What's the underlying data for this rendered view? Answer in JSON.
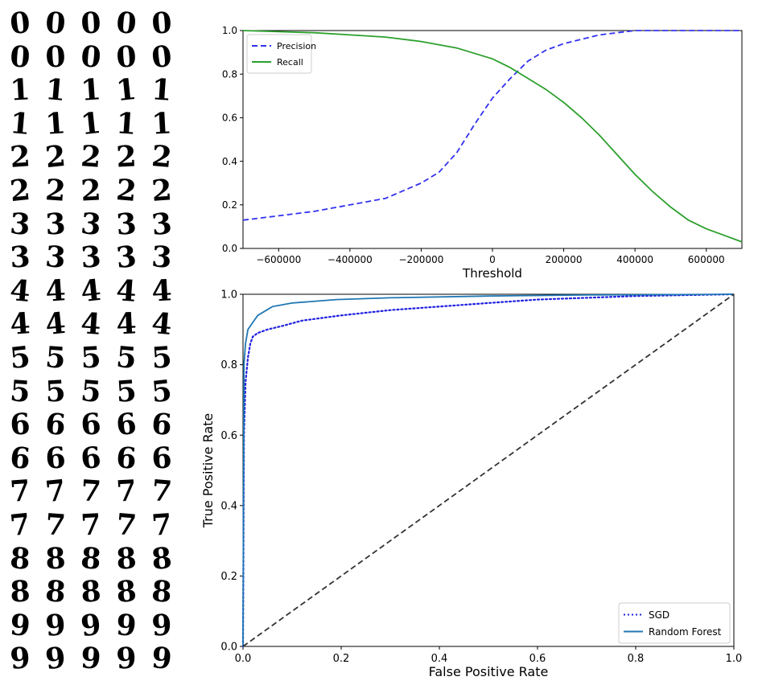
{
  "digits": {
    "rows": [
      [
        "0",
        "0",
        "0",
        "0",
        "0"
      ],
      [
        "0",
        "0",
        "0",
        "0",
        "0"
      ],
      [
        "1",
        "1",
        "1",
        "1",
        "1"
      ],
      [
        "1",
        "1",
        "1",
        "1",
        "1"
      ],
      [
        "2",
        "2",
        "2",
        "2",
        "2"
      ],
      [
        "2",
        "2",
        "2",
        "2",
        "2"
      ],
      [
        "3",
        "3",
        "3",
        "3",
        "3"
      ],
      [
        "3",
        "3",
        "3",
        "3",
        "3"
      ],
      [
        "4",
        "4",
        "4",
        "4",
        "4"
      ],
      [
        "4",
        "4",
        "4",
        "4",
        "4"
      ],
      [
        "5",
        "5",
        "5",
        "5",
        "5"
      ],
      [
        "5",
        "5",
        "5",
        "5",
        "5"
      ],
      [
        "6",
        "6",
        "6",
        "6",
        "6"
      ],
      [
        "6",
        "6",
        "6",
        "6",
        "6"
      ],
      [
        "7",
        "7",
        "7",
        "7",
        "7"
      ],
      [
        "7",
        "7",
        "7",
        "7",
        "7"
      ],
      [
        "8",
        "8",
        "8",
        "8",
        "8"
      ],
      [
        "8",
        "8",
        "8",
        "8",
        "8"
      ],
      [
        "9",
        "9",
        "9",
        "9",
        "9"
      ],
      [
        "9",
        "9",
        "9",
        "9",
        "9"
      ]
    ]
  },
  "chart_data": [
    {
      "type": "line",
      "title": "",
      "xlabel": "Threshold",
      "ylabel": "",
      "xlim": [
        -700000,
        700000
      ],
      "ylim": [
        0,
        1
      ],
      "xticks": [
        -600000,
        -400000,
        -200000,
        0,
        200000,
        400000,
        600000
      ],
      "xtick_labels": [
        "−600000",
        "−400000",
        "−200000",
        "0",
        "200000",
        "400000",
        "600000"
      ],
      "yticks": [
        0,
        0.2,
        0.4,
        0.6,
        0.8,
        1.0
      ],
      "ytick_labels": [
        "0.0",
        "0.2",
        "0.4",
        "0.6",
        "0.8",
        "1.0"
      ],
      "legend_position": "top-left",
      "series": [
        {
          "name": "Precision",
          "style": "dashed",
          "color": "#3232f0",
          "x": [
            -700000,
            -600000,
            -500000,
            -400000,
            -300000,
            -200000,
            -150000,
            -100000,
            -50000,
            0,
            50000,
            100000,
            150000,
            200000,
            250000,
            300000,
            350000,
            400000,
            500000,
            600000,
            700000
          ],
          "y": [
            0.13,
            0.15,
            0.17,
            0.2,
            0.23,
            0.3,
            0.35,
            0.44,
            0.57,
            0.69,
            0.78,
            0.86,
            0.91,
            0.94,
            0.96,
            0.98,
            0.99,
            1.0,
            1.0,
            1.0,
            1.0
          ]
        },
        {
          "name": "Recall",
          "style": "solid",
          "color": "#2ca02c",
          "x": [
            -700000,
            -600000,
            -500000,
            -400000,
            -300000,
            -200000,
            -100000,
            0,
            50000,
            100000,
            150000,
            200000,
            250000,
            300000,
            350000,
            400000,
            450000,
            500000,
            550000,
            600000,
            650000,
            700000
          ],
          "y": [
            1.0,
            0.995,
            0.99,
            0.98,
            0.97,
            0.95,
            0.92,
            0.87,
            0.83,
            0.78,
            0.73,
            0.67,
            0.6,
            0.52,
            0.43,
            0.34,
            0.26,
            0.19,
            0.13,
            0.09,
            0.06,
            0.03
          ]
        }
      ]
    },
    {
      "type": "line",
      "title": "",
      "xlabel": "False Positive Rate",
      "ylabel": "True Positive Rate",
      "xlim": [
        0,
        1
      ],
      "ylim": [
        0,
        1
      ],
      "xticks": [
        0,
        0.2,
        0.4,
        0.6,
        0.8,
        1.0
      ],
      "xtick_labels": [
        "0.0",
        "0.2",
        "0.4",
        "0.6",
        "0.8",
        "1.0"
      ],
      "yticks": [
        0,
        0.2,
        0.4,
        0.6,
        0.8,
        1.0
      ],
      "ytick_labels": [
        "0.0",
        "0.2",
        "0.4",
        "0.6",
        "0.8",
        "1.0"
      ],
      "legend_position": "bottom-right",
      "series": [
        {
          "name": "SGD",
          "style": "dotted",
          "color": "#2020e0",
          "x": [
            0,
            0.002,
            0.005,
            0.01,
            0.015,
            0.02,
            0.03,
            0.05,
            0.08,
            0.12,
            0.2,
            0.3,
            0.4,
            0.5,
            0.6,
            0.8,
            1.0
          ],
          "y": [
            0,
            0.6,
            0.75,
            0.82,
            0.86,
            0.88,
            0.89,
            0.9,
            0.91,
            0.925,
            0.94,
            0.955,
            0.965,
            0.975,
            0.985,
            0.995,
            1.0
          ]
        },
        {
          "name": "Random Forest",
          "style": "solid",
          "color": "#1f77b4",
          "x": [
            0,
            0.002,
            0.005,
            0.01,
            0.02,
            0.03,
            0.06,
            0.1,
            0.19,
            0.3,
            0.5,
            0.7,
            1.0
          ],
          "y": [
            0,
            0.8,
            0.86,
            0.9,
            0.92,
            0.94,
            0.965,
            0.975,
            0.985,
            0.99,
            0.995,
            0.998,
            1.0
          ]
        },
        {
          "name": "",
          "style": "dashed",
          "color": "#333333",
          "x": [
            0,
            1
          ],
          "y": [
            0,
            1
          ]
        }
      ]
    }
  ]
}
